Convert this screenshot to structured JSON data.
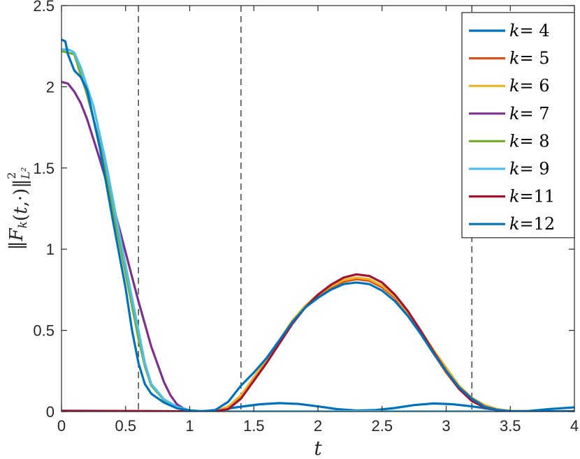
{
  "chart_data": {
    "type": "line",
    "xlabel": "t",
    "ylabel": "||F_k(t,·)||²_L²",
    "xlim": [
      0,
      4
    ],
    "ylim": [
      0,
      2.5
    ],
    "xticks": [
      0,
      0.5,
      1,
      1.5,
      2,
      2.5,
      3,
      3.5,
      4
    ],
    "xtick_labels": [
      "0",
      "0.5",
      "1",
      "1.5",
      "2",
      "2.5",
      "3",
      "3.5",
      "4"
    ],
    "yticks": [
      0,
      0.5,
      1,
      1.5,
      2,
      2.5
    ],
    "ytick_labels": [
      "0",
      "0.5",
      "1",
      "1.5",
      "2",
      "2.5"
    ],
    "grid": false,
    "legend_position": "top-right",
    "vertical_dashed_lines": [
      0.6,
      1.4,
      3.2
    ],
    "series": [
      {
        "name": "k= 4",
        "color": "#0072BD",
        "points": [
          [
            0,
            0.005
          ],
          [
            0.5,
            0.004
          ],
          [
            0.9,
            0.002
          ],
          [
            1.05,
            0
          ],
          [
            1.2,
            0.008
          ],
          [
            1.4,
            0.03
          ],
          [
            1.55,
            0.045
          ],
          [
            1.7,
            0.052
          ],
          [
            1.85,
            0.047
          ],
          [
            2.0,
            0.032
          ],
          [
            2.15,
            0.015
          ],
          [
            2.3,
            0.006
          ],
          [
            2.45,
            0.009
          ],
          [
            2.6,
            0.022
          ],
          [
            2.75,
            0.04
          ],
          [
            2.9,
            0.05
          ],
          [
            3.05,
            0.045
          ],
          [
            3.2,
            0.032
          ],
          [
            3.35,
            0.015
          ],
          [
            3.5,
            0.003
          ],
          [
            3.65,
            0.004
          ],
          [
            3.8,
            0.015
          ],
          [
            4.0,
            0.026
          ]
        ]
      },
      {
        "name": "k= 5",
        "color": "#D95319",
        "points": [
          [
            0,
            0.004
          ],
          [
            0.6,
            0.003
          ],
          [
            1.0,
            0.001
          ],
          [
            1.1,
            0
          ],
          [
            1.2,
            0.003
          ],
          [
            1.3,
            0.02
          ],
          [
            1.4,
            0.09
          ],
          [
            1.5,
            0.2
          ],
          [
            1.6,
            0.31
          ],
          [
            1.7,
            0.43
          ],
          [
            1.8,
            0.55
          ],
          [
            1.9,
            0.64
          ],
          [
            2.0,
            0.71
          ],
          [
            2.1,
            0.76
          ],
          [
            2.2,
            0.8
          ],
          [
            2.3,
            0.815
          ],
          [
            2.4,
            0.805
          ],
          [
            2.5,
            0.765
          ],
          [
            2.6,
            0.7
          ],
          [
            2.7,
            0.6
          ],
          [
            2.8,
            0.48
          ],
          [
            2.9,
            0.36
          ],
          [
            3.0,
            0.24
          ],
          [
            3.1,
            0.14
          ],
          [
            3.2,
            0.07
          ],
          [
            3.3,
            0.03
          ],
          [
            3.4,
            0.01
          ],
          [
            3.5,
            0.003
          ],
          [
            3.7,
            0.001
          ],
          [
            4.0,
            0.002
          ]
        ]
      },
      {
        "name": "k= 6",
        "color": "#EDB120",
        "points": [
          [
            0,
            0.004
          ],
          [
            0.6,
            0.003
          ],
          [
            1.0,
            0.001
          ],
          [
            1.1,
            0
          ],
          [
            1.2,
            0.005
          ],
          [
            1.3,
            0.03
          ],
          [
            1.4,
            0.1
          ],
          [
            1.5,
            0.21
          ],
          [
            1.6,
            0.32
          ],
          [
            1.7,
            0.44
          ],
          [
            1.8,
            0.56
          ],
          [
            1.9,
            0.65
          ],
          [
            2.0,
            0.72
          ],
          [
            2.1,
            0.77
          ],
          [
            2.2,
            0.81
          ],
          [
            2.3,
            0.825
          ],
          [
            2.4,
            0.815
          ],
          [
            2.5,
            0.775
          ],
          [
            2.6,
            0.71
          ],
          [
            2.7,
            0.61
          ],
          [
            2.8,
            0.5
          ],
          [
            2.9,
            0.38
          ],
          [
            3.0,
            0.27
          ],
          [
            3.1,
            0.16
          ],
          [
            3.2,
            0.085
          ],
          [
            3.3,
            0.04
          ],
          [
            3.4,
            0.015
          ],
          [
            3.5,
            0.004
          ],
          [
            3.7,
            0.001
          ],
          [
            4.0,
            0.002
          ]
        ]
      },
      {
        "name": "k= 7",
        "color": "#7E2F8E",
        "points": [
          [
            0,
            2.03
          ],
          [
            0.05,
            2.02
          ],
          [
            0.1,
            1.97
          ],
          [
            0.15,
            1.9
          ],
          [
            0.2,
            1.8
          ],
          [
            0.3,
            1.55
          ],
          [
            0.4,
            1.28
          ],
          [
            0.5,
            0.98
          ],
          [
            0.6,
            0.68
          ],
          [
            0.7,
            0.4
          ],
          [
            0.8,
            0.18
          ],
          [
            0.85,
            0.1
          ],
          [
            0.9,
            0.045
          ],
          [
            0.95,
            0.02
          ],
          [
            1.0,
            0.007
          ],
          [
            1.1,
            0.002
          ],
          [
            1.3,
            0.001
          ],
          [
            4.0,
            0.001
          ]
        ]
      },
      {
        "name": "k= 8",
        "color": "#77AC30",
        "points": [
          [
            0,
            2.22
          ],
          [
            0.1,
            2.2
          ],
          [
            0.2,
            1.95
          ],
          [
            0.3,
            1.65
          ],
          [
            0.4,
            1.25
          ],
          [
            0.5,
            0.85
          ],
          [
            0.6,
            0.45
          ],
          [
            0.65,
            0.28
          ],
          [
            0.7,
            0.16
          ],
          [
            0.8,
            0.07
          ],
          [
            0.9,
            0.025
          ],
          [
            1.0,
            0.006
          ],
          [
            1.1,
            0.001
          ],
          [
            4.0,
            0.001
          ]
        ]
      },
      {
        "name": "k= 9",
        "color": "#4DBEEE",
        "points": [
          [
            0,
            2.23
          ],
          [
            0.05,
            2.23
          ],
          [
            0.08,
            2.22
          ],
          [
            0.1,
            2.21
          ],
          [
            0.15,
            2.12
          ],
          [
            0.25,
            1.88
          ],
          [
            0.35,
            1.52
          ],
          [
            0.45,
            1.1
          ],
          [
            0.55,
            0.7
          ],
          [
            0.6,
            0.5
          ],
          [
            0.65,
            0.3
          ],
          [
            0.7,
            0.17
          ],
          [
            0.8,
            0.075
          ],
          [
            0.9,
            0.03
          ],
          [
            1.0,
            0.008
          ],
          [
            1.1,
            0.001
          ],
          [
            4.0,
            0.001
          ]
        ]
      },
      {
        "name": "k=11",
        "color": "#A2142F",
        "points": [
          [
            0,
            0.004
          ],
          [
            0.6,
            0.003
          ],
          [
            1.0,
            0.001
          ],
          [
            1.1,
            0
          ],
          [
            1.2,
            0.002
          ],
          [
            1.3,
            0.015
          ],
          [
            1.4,
            0.08
          ],
          [
            1.5,
            0.19
          ],
          [
            1.6,
            0.3
          ],
          [
            1.7,
            0.42
          ],
          [
            1.8,
            0.54
          ],
          [
            1.9,
            0.64
          ],
          [
            2.0,
            0.72
          ],
          [
            2.1,
            0.78
          ],
          [
            2.2,
            0.825
          ],
          [
            2.3,
            0.845
          ],
          [
            2.4,
            0.835
          ],
          [
            2.5,
            0.795
          ],
          [
            2.6,
            0.72
          ],
          [
            2.7,
            0.62
          ],
          [
            2.8,
            0.5
          ],
          [
            2.9,
            0.37
          ],
          [
            3.0,
            0.25
          ],
          [
            3.1,
            0.14
          ],
          [
            3.2,
            0.065
          ],
          [
            3.3,
            0.025
          ],
          [
            3.4,
            0.008
          ],
          [
            3.5,
            0.002
          ],
          [
            3.7,
            0.001
          ],
          [
            4.0,
            0.002
          ]
        ]
      },
      {
        "name": "k=12",
        "color": "#0072BD",
        "points": [
          [
            0,
            2.29
          ],
          [
            0.03,
            2.28
          ],
          [
            0.05,
            2.2
          ],
          [
            0.1,
            2.1
          ],
          [
            0.15,
            2.06
          ],
          [
            0.2,
            1.98
          ],
          [
            0.3,
            1.62
          ],
          [
            0.4,
            1.18
          ],
          [
            0.5,
            0.76
          ],
          [
            0.55,
            0.5
          ],
          [
            0.6,
            0.3
          ],
          [
            0.65,
            0.17
          ],
          [
            0.7,
            0.11
          ],
          [
            0.8,
            0.055
          ],
          [
            0.9,
            0.02
          ],
          [
            1.0,
            0.006
          ],
          [
            1.1,
            0.001
          ],
          [
            1.2,
            0.01
          ],
          [
            1.3,
            0.06
          ],
          [
            1.4,
            0.16
          ],
          [
            1.5,
            0.24
          ],
          [
            1.6,
            0.33
          ],
          [
            1.7,
            0.44
          ],
          [
            1.8,
            0.55
          ],
          [
            1.9,
            0.64
          ],
          [
            2.0,
            0.7
          ],
          [
            2.1,
            0.75
          ],
          [
            2.2,
            0.785
          ],
          [
            2.3,
            0.795
          ],
          [
            2.4,
            0.785
          ],
          [
            2.5,
            0.745
          ],
          [
            2.6,
            0.68
          ],
          [
            2.7,
            0.59
          ],
          [
            2.8,
            0.48
          ],
          [
            2.9,
            0.36
          ],
          [
            3.0,
            0.25
          ],
          [
            3.1,
            0.15
          ],
          [
            3.2,
            0.08
          ],
          [
            3.3,
            0.03
          ],
          [
            3.4,
            0.01
          ],
          [
            3.5,
            0.003
          ],
          [
            3.7,
            0.001
          ],
          [
            4.0,
            0.002
          ]
        ]
      }
    ]
  }
}
